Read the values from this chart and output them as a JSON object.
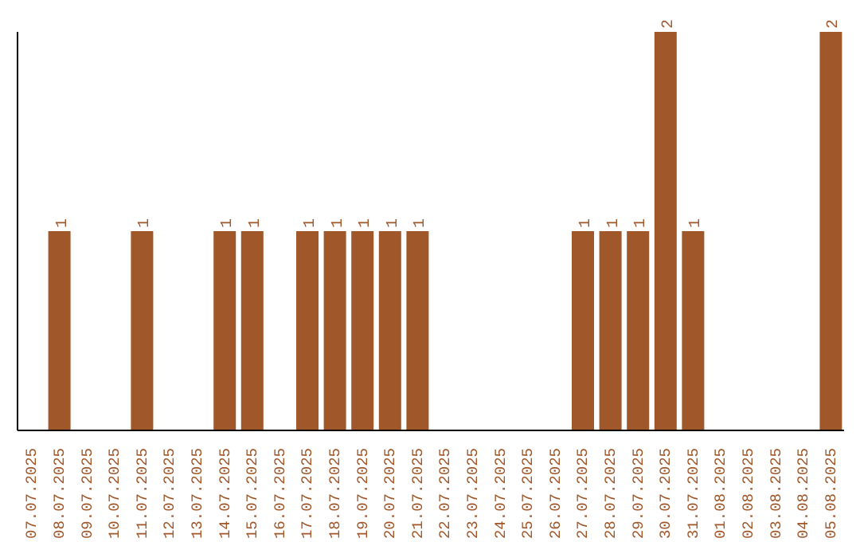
{
  "chart_data": {
    "type": "bar",
    "categories": [
      "07.07.2025",
      "08.07.2025",
      "09.07.2025",
      "10.07.2025",
      "11.07.2025",
      "12.07.2025",
      "13.07.2025",
      "14.07.2025",
      "15.07.2025",
      "16.07.2025",
      "17.07.2025",
      "18.07.2025",
      "19.07.2025",
      "20.07.2025",
      "21.07.2025",
      "22.07.2025",
      "23.07.2025",
      "24.07.2025",
      "25.07.2025",
      "26.07.2025",
      "27.07.2025",
      "28.07.2025",
      "29.07.2025",
      "30.07.2025",
      "31.07.2025",
      "01.08.2025",
      "02.08.2025",
      "03.08.2025",
      "04.08.2025",
      "05.08.2025"
    ],
    "values": [
      0,
      1,
      0,
      0,
      1,
      0,
      0,
      1,
      1,
      0,
      1,
      1,
      1,
      1,
      1,
      0,
      0,
      0,
      0,
      0,
      1,
      1,
      1,
      2,
      1,
      0,
      0,
      0,
      0,
      2
    ],
    "value_labels": [
      null,
      "1",
      null,
      null,
      "1",
      null,
      null,
      "1",
      "1",
      null,
      "1",
      "1",
      "1",
      "1",
      "1",
      null,
      null,
      null,
      null,
      null,
      "1",
      "1",
      "1",
      "2",
      "1",
      null,
      null,
      null,
      null,
      "2"
    ],
    "color": "#a0572a",
    "ylim": [
      0,
      2
    ],
    "tick_labels": "x",
    "grid": false,
    "legend": false
  }
}
